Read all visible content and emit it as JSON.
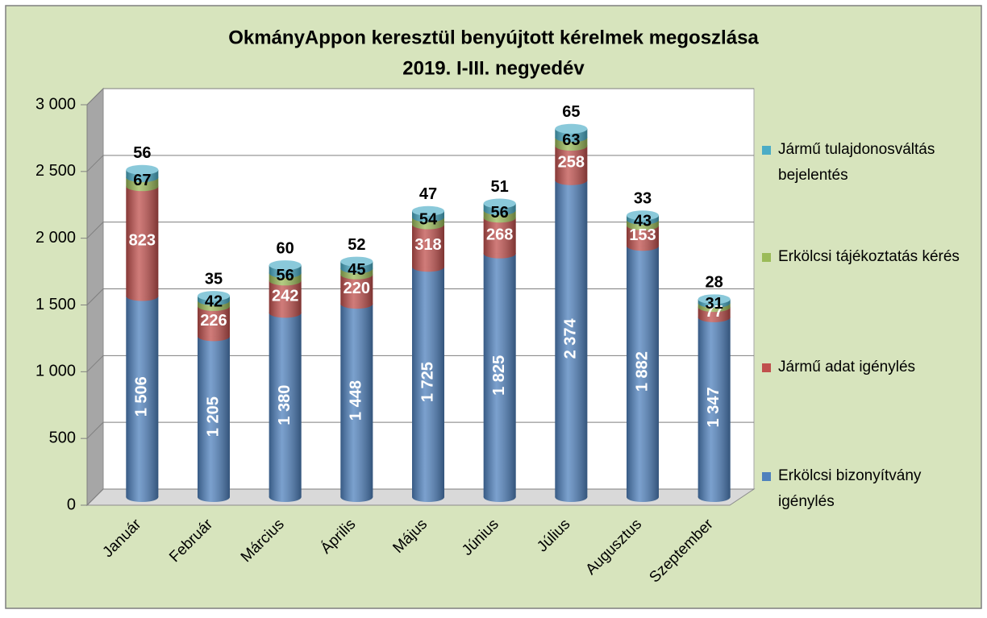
{
  "chart_data": {
    "type": "bar",
    "stacked": true,
    "title": "OkmányAppon keresztül benyújtott kérelmek megoszlása",
    "subtitle": "2019. I-III. negyedév",
    "categories": [
      "Január",
      "Február",
      "Március",
      "Április",
      "Május",
      "Június",
      "Július",
      "Augusztus",
      "Szeptember"
    ],
    "series": [
      {
        "name": "Erkölcsi bizonyítvány igénylés",
        "color": "#4f81bd",
        "values": [
          1506,
          1205,
          1380,
          1448,
          1725,
          1825,
          2374,
          1882,
          1347
        ],
        "value_labels": [
          "1 506",
          "1 205",
          "1 380",
          "1 448",
          "1 725",
          "1 825",
          "2 374",
          "1 882",
          "1 347"
        ]
      },
      {
        "name": "Jármű adat igénylés",
        "color": "#c0504d",
        "values": [
          823,
          226,
          242,
          220,
          318,
          268,
          258,
          153,
          77
        ]
      },
      {
        "name": "Erkölcsi tájékoztatás kérés",
        "color": "#9bbb59",
        "values": [
          67,
          42,
          56,
          45,
          54,
          56,
          63,
          43,
          31
        ]
      },
      {
        "name": "Jármű tulajdonosváltás bejelentés",
        "color": "#4bacc6",
        "values": [
          56,
          35,
          60,
          52,
          47,
          51,
          65,
          33,
          28
        ]
      }
    ],
    "ylim": [
      0,
      3000
    ],
    "yticks": [
      0,
      500,
      {
        "value": 1000,
        "label": "1 000"
      },
      {
        "value": 1500,
        "label": "1 500"
      },
      {
        "value": 2000,
        "label": "2 000"
      },
      {
        "value": 2500,
        "label": "2 500"
      },
      {
        "value": 3000,
        "label": "3 000"
      }
    ],
    "grid": true,
    "legend": "right"
  }
}
